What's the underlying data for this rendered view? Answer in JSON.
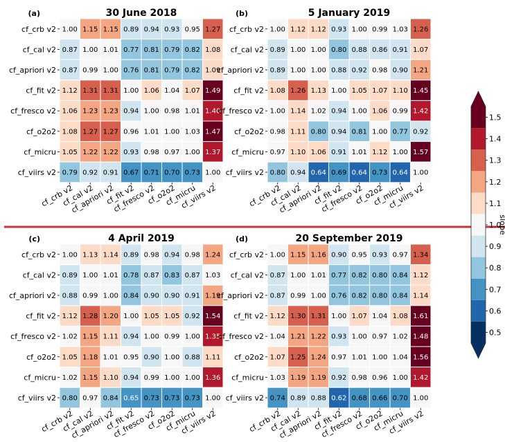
{
  "colorbar": {
    "label": "slope",
    "ticks": [
      0.5,
      0.6,
      0.7,
      0.8,
      0.9,
      1.0,
      1.1,
      1.2,
      1.3,
      1.4,
      1.5
    ],
    "tick_labels": [
      "0.5",
      "0.6",
      "0.7",
      "0.8",
      "0.9",
      "1.0",
      "1.1",
      "1.2",
      "1.3",
      "1.4",
      "1.5"
    ],
    "range": [
      0.45,
      1.55
    ],
    "bins": [
      {
        "lo": 0.45,
        "hi": 0.55,
        "color": "#053061"
      },
      {
        "lo": 0.55,
        "hi": 0.65,
        "color": "#2166ac"
      },
      {
        "lo": 0.65,
        "hi": 0.75,
        "color": "#4393c3"
      },
      {
        "lo": 0.75,
        "hi": 0.85,
        "color": "#92c5de"
      },
      {
        "lo": 0.85,
        "hi": 0.95,
        "color": "#d1e5f0"
      },
      {
        "lo": 0.95,
        "hi": 1.05,
        "color": "#f7f7f7"
      },
      {
        "lo": 1.05,
        "hi": 1.15,
        "color": "#fddbc7"
      },
      {
        "lo": 1.15,
        "hi": 1.25,
        "color": "#f4a582"
      },
      {
        "lo": 1.25,
        "hi": 1.35,
        "color": "#d6604d"
      },
      {
        "lo": 1.35,
        "hi": 1.45,
        "color": "#b2182b"
      },
      {
        "lo": 1.45,
        "hi": 1.55,
        "color": "#67001f"
      }
    ],
    "under_color": "#053061",
    "over_color": "#67001f"
  },
  "separator_color": "#c8323a",
  "chart_data": [
    {
      "type": "heatmap",
      "letter": "(a)",
      "title": "30 June 2018",
      "rows": [
        "cf_crb v2",
        "cf_cal v2",
        "cf_apriori v2",
        "cf_fit v2",
        "cf_fresco v2",
        "cf_o2o2",
        "cf_micru",
        "cf_viirs v2"
      ],
      "cols": [
        "cf_crb v2",
        "cf_cal v2",
        "cf_apriori v2",
        "cf_fit v2",
        "cf_fresco v2",
        "cf_o2o2",
        "cf_micru",
        "cf_viirs v2"
      ],
      "values": [
        [
          1.0,
          1.15,
          1.15,
          0.89,
          0.94,
          0.93,
          0.95,
          1.27
        ],
        [
          0.87,
          1.0,
          1.01,
          0.77,
          0.81,
          0.79,
          0.82,
          1.08
        ],
        [
          0.87,
          0.99,
          1.0,
          0.76,
          0.81,
          0.79,
          0.82,
          1.09
        ],
        [
          1.12,
          1.31,
          1.31,
          1.0,
          1.06,
          1.04,
          1.07,
          1.49
        ],
        [
          1.06,
          1.23,
          1.23,
          0.94,
          1.0,
          0.98,
          1.01,
          1.4
        ],
        [
          1.08,
          1.27,
          1.27,
          0.96,
          1.01,
          1.0,
          1.03,
          1.47
        ],
        [
          1.05,
          1.22,
          1.22,
          0.93,
          0.98,
          0.97,
          1.0,
          1.37
        ],
        [
          0.79,
          0.92,
          0.91,
          0.67,
          0.71,
          0.7,
          0.73,
          1.0
        ]
      ]
    },
    {
      "type": "heatmap",
      "letter": "(b)",
      "title": "5 January 2019",
      "rows": [
        "cf_crb v2",
        "cf_cal v2",
        "cf_apriori v2",
        "cf_fit v2",
        "cf_fresco v2",
        "cf_o2o2",
        "cf_micru",
        "cf_viirs v2"
      ],
      "cols": [
        "cf_crb v2",
        "cf_cal v2",
        "cf_apriori v2",
        "cf_fit v2",
        "cf_fresco v2",
        "cf_o2o2",
        "cf_micru",
        "cf_viirs v2"
      ],
      "values": [
        [
          1.0,
          1.12,
          1.12,
          0.93,
          1.0,
          0.99,
          1.03,
          1.26
        ],
        [
          0.89,
          1.0,
          1.0,
          0.8,
          0.88,
          0.86,
          0.91,
          1.07
        ],
        [
          0.89,
          1.0,
          1.0,
          0.88,
          0.92,
          0.98,
          0.9,
          1.21
        ],
        [
          1.08,
          1.26,
          1.13,
          1.0,
          1.05,
          1.07,
          1.1,
          1.45
        ],
        [
          1.0,
          1.14,
          1.02,
          0.94,
          1.0,
          1.06,
          0.99,
          1.42
        ],
        [
          0.98,
          1.11,
          0.8,
          0.94,
          0.81,
          1.0,
          0.77,
          0.92
        ],
        [
          0.97,
          1.1,
          1.06,
          0.91,
          1.01,
          1.12,
          1.0,
          1.57
        ],
        [
          0.8,
          0.94,
          0.64,
          0.69,
          0.64,
          0.73,
          0.64,
          1.0
        ]
      ]
    },
    {
      "type": "heatmap",
      "letter": "(c)",
      "title": "4 April 2019",
      "rows": [
        "cf_crb v2",
        "cf_cal v2",
        "cf_apriori v2",
        "cf_fit v2",
        "cf_fresco v2",
        "cf_o2o2",
        "cf_micru",
        "cf_viirs v2"
      ],
      "cols": [
        "cf_crb v2",
        "cf_cal v2",
        "cf_apriori v2",
        "cf_fit v2",
        "cf_fresco v2",
        "cf_o2o2",
        "cf_micru",
        "cf_viirs v2"
      ],
      "values": [
        [
          1.0,
          1.13,
          1.14,
          0.89,
          0.98,
          0.94,
          0.98,
          1.24
        ],
        [
          0.89,
          1.0,
          1.01,
          0.78,
          0.87,
          0.83,
          0.87,
          1.03
        ],
        [
          0.88,
          0.99,
          1.0,
          0.84,
          0.9,
          0.9,
          0.91,
          1.19
        ],
        [
          1.12,
          1.28,
          1.2,
          1.0,
          1.05,
          1.05,
          0.92,
          1.54
        ],
        [
          1.02,
          1.15,
          1.11,
          0.94,
          1.0,
          0.99,
          1.0,
          1.35
        ],
        [
          1.05,
          1.18,
          1.01,
          0.95,
          0.9,
          1.0,
          0.88,
          1.11
        ],
        [
          1.02,
          1.15,
          1.1,
          0.94,
          0.99,
          1.0,
          1.0,
          1.36
        ],
        [
          0.8,
          0.97,
          0.84,
          0.65,
          0.73,
          0.73,
          0.73,
          1.0
        ]
      ]
    },
    {
      "type": "heatmap",
      "letter": "(d)",
      "title": "20 September 2019",
      "rows": [
        "cf_crb v2",
        "cf_cal v2",
        "cf_apriori v2",
        "cf_fit v2",
        "cf_fresco v2",
        "cf_o2o2",
        "cf_micru",
        "cf_viirs v2"
      ],
      "cols": [
        "cf_crb v2",
        "cf_cal v2",
        "cf_apriori v2",
        "cf_fit v2",
        "cf_fresco v2",
        "cf_o2o2",
        "cf_micru",
        "cf_viirs v2"
      ],
      "values": [
        [
          1.0,
          1.15,
          1.16,
          0.9,
          0.95,
          0.93,
          0.97,
          1.34
        ],
        [
          0.87,
          1.0,
          1.01,
          0.77,
          0.82,
          0.8,
          0.84,
          1.12
        ],
        [
          0.87,
          0.99,
          1.0,
          0.76,
          0.82,
          0.8,
          0.84,
          1.14
        ],
        [
          1.12,
          1.3,
          1.31,
          1.0,
          1.07,
          1.04,
          1.08,
          1.61
        ],
        [
          1.04,
          1.21,
          1.22,
          0.93,
          1.0,
          0.97,
          1.02,
          1.48
        ],
        [
          1.07,
          1.25,
          1.24,
          0.97,
          1.01,
          1.0,
          1.04,
          1.56
        ],
        [
          1.03,
          1.19,
          1.19,
          0.92,
          0.98,
          0.96,
          1.0,
          1.42
        ],
        [
          0.74,
          0.89,
          0.88,
          0.62,
          0.68,
          0.66,
          0.7,
          1.0
        ]
      ]
    }
  ]
}
